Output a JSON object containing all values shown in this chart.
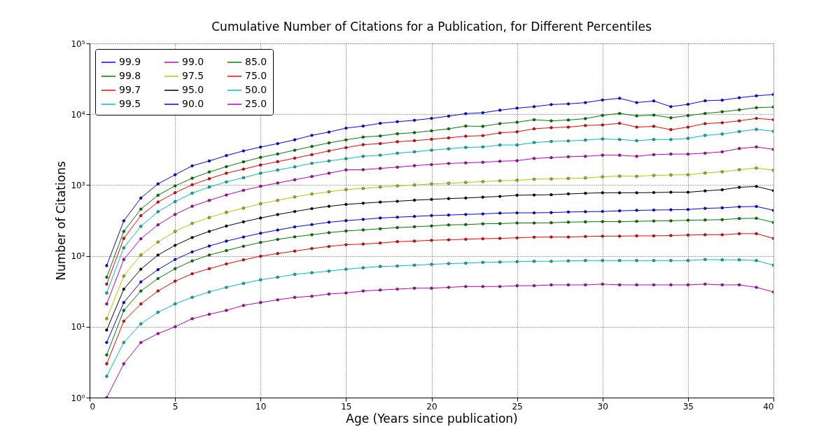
{
  "chart_data": {
    "type": "line",
    "title": "Cumulative Number of Citations for a Publication, for Different Percentiles",
    "xlabel": "Age (Years since publication)",
    "ylabel": "Number of Citations",
    "x": [
      1,
      2,
      3,
      4,
      5,
      6,
      7,
      8,
      9,
      10,
      11,
      12,
      13,
      14,
      15,
      16,
      17,
      18,
      19,
      20,
      21,
      22,
      23,
      24,
      25,
      26,
      27,
      28,
      29,
      30,
      31,
      32,
      33,
      34,
      35,
      36,
      37,
      38,
      39,
      40
    ],
    "xlim": [
      0,
      40
    ],
    "xticks": [
      0,
      5,
      10,
      15,
      20,
      25,
      30,
      35,
      40
    ],
    "ylim": [
      1,
      100000
    ],
    "log": true,
    "yticks": [
      {
        "value": 1,
        "label": "10⁰"
      },
      {
        "value": 10,
        "label": "10¹"
      },
      {
        "value": 100,
        "label": "10²"
      },
      {
        "value": 1000,
        "label": "10³"
      },
      {
        "value": 10000,
        "label": "10⁴"
      },
      {
        "value": 100000,
        "label": "10⁵"
      }
    ],
    "grid": true,
    "legend": "top left",
    "marker": "circle",
    "line_style": "solid",
    "series": [
      {
        "name": "99.9",
        "color": "#0000ff",
        "values": [
          73,
          313,
          656,
          1040,
          1400,
          1870,
          2190,
          2610,
          3040,
          3440,
          3850,
          4360,
          5040,
          5600,
          6370,
          6810,
          7450,
          7850,
          8220,
          8740,
          9400,
          10200,
          10500,
          11400,
          12200,
          12800,
          13700,
          14000,
          14600,
          15900,
          16800,
          14600,
          15400,
          12800,
          13800,
          15500,
          15800,
          17100,
          18200,
          19000
        ]
      },
      {
        "name": "99.8",
        "color": "#008000",
        "values": [
          50,
          222,
          458,
          718,
          975,
          1250,
          1530,
          1820,
          2130,
          2460,
          2750,
          3110,
          3510,
          3940,
          4350,
          4760,
          4940,
          5310,
          5500,
          5850,
          6230,
          6810,
          6750,
          7380,
          7720,
          8370,
          8070,
          8290,
          8670,
          9640,
          10270,
          9480,
          9730,
          8910,
          9570,
          10270,
          10830,
          11540,
          12390,
          12620
        ]
      },
      {
        "name": "99.7",
        "color": "#ff0000",
        "values": [
          40,
          177,
          370,
          576,
          781,
          1010,
          1230,
          1470,
          1680,
          1920,
          2140,
          2400,
          2690,
          3040,
          3380,
          3720,
          3850,
          4090,
          4240,
          4440,
          4640,
          4900,
          4990,
          5450,
          5650,
          6230,
          6460,
          6580,
          6940,
          7060,
          7450,
          6580,
          6750,
          6060,
          6580,
          7380,
          7590,
          8070,
          8740,
          8370
        ]
      },
      {
        "name": "99.5",
        "color": "#00bfbf",
        "values": [
          30,
          130,
          262,
          421,
          585,
          769,
          938,
          1110,
          1270,
          1470,
          1630,
          1810,
          2030,
          2190,
          2360,
          2550,
          2640,
          2820,
          2950,
          3110,
          3250,
          3400,
          3460,
          3680,
          3680,
          3990,
          4130,
          4200,
          4320,
          4480,
          4400,
          4240,
          4400,
          4400,
          4560,
          5030,
          5260,
          5700,
          6120,
          5750
        ]
      },
      {
        "name": "99.0",
        "color": "#bf00bf",
        "values": [
          21,
          89,
          175,
          275,
          385,
          502,
          608,
          725,
          844,
          961,
          1070,
          1190,
          1320,
          1470,
          1640,
          1650,
          1720,
          1790,
          1880,
          1950,
          2020,
          2060,
          2100,
          2170,
          2210,
          2380,
          2440,
          2510,
          2550,
          2640,
          2640,
          2550,
          2690,
          2740,
          2740,
          2820,
          2950,
          3280,
          3460,
          3190
        ]
      },
      {
        "name": "97.5",
        "color": "#bfbf00",
        "values": [
          13,
          52,
          103,
          157,
          222,
          288,
          348,
          412,
          472,
          546,
          608,
          681,
          747,
          806,
          863,
          897,
          939,
          973,
          1000,
          1040,
          1060,
          1090,
          1120,
          1150,
          1170,
          1210,
          1220,
          1240,
          1260,
          1310,
          1340,
          1330,
          1370,
          1390,
          1400,
          1480,
          1540,
          1650,
          1740,
          1620
        ]
      },
      {
        "name": "95.0",
        "color": "#000000",
        "values": [
          9,
          34,
          65,
          103,
          141,
          182,
          222,
          264,
          303,
          343,
          384,
          424,
          465,
          502,
          534,
          555,
          575,
          591,
          612,
          628,
          645,
          657,
          675,
          693,
          719,
          725,
          731,
          751,
          766,
          779,
          779,
          779,
          785,
          793,
          793,
          829,
          859,
          931,
          957,
          836
        ]
      },
      {
        "name": "90.0",
        "color": "#0000ff",
        "values": [
          6,
          22,
          43,
          64,
          89,
          114,
          138,
          162,
          185,
          209,
          232,
          257,
          277,
          299,
          315,
          328,
          343,
          352,
          361,
          371,
          378,
          385,
          392,
          402,
          406,
          406,
          409,
          417,
          421,
          424,
          433,
          440,
          444,
          448,
          452,
          469,
          477,
          494,
          499,
          440
        ]
      },
      {
        "name": "85.0",
        "color": "#008000",
        "values": [
          4,
          17,
          32,
          48,
          66,
          85,
          103,
          119,
          137,
          155,
          171,
          186,
          199,
          213,
          225,
          233,
          242,
          251,
          258,
          265,
          274,
          277,
          284,
          286,
          292,
          292,
          294,
          300,
          303,
          305,
          305,
          308,
          311,
          313,
          319,
          322,
          325,
          337,
          340,
          297
        ]
      },
      {
        "name": "75.0",
        "color": "#ff0000",
        "values": [
          3,
          12,
          21,
          32,
          44,
          56,
          66,
          77,
          88,
          99,
          108,
          117,
          127,
          136,
          144,
          147,
          152,
          159,
          162,
          166,
          169,
          172,
          175,
          177,
          180,
          184,
          185,
          185,
          188,
          190,
          190,
          192,
          192,
          194,
          197,
          199,
          199,
          206,
          206,
          177
        ]
      },
      {
        "name": "50.0",
        "color": "#00bfbf",
        "values": [
          2,
          6,
          11,
          16,
          21,
          26,
          31,
          36,
          41,
          46,
          50,
          55,
          58,
          61,
          65,
          68,
          71,
          72,
          74,
          76,
          78,
          79,
          81,
          82,
          83,
          84,
          84,
          85,
          86,
          86,
          86,
          86,
          86,
          86,
          86,
          89,
          88,
          88,
          86,
          74
        ]
      },
      {
        "name": "25.0",
        "color": "#bf00bf",
        "values": [
          1,
          3,
          6,
          8,
          10,
          13,
          15,
          17,
          20,
          22,
          24,
          26,
          27,
          29,
          30,
          32,
          33,
          34,
          35,
          35,
          36,
          37,
          37,
          37,
          38,
          38,
          39,
          39,
          39,
          40,
          39,
          39,
          39,
          39,
          39,
          40,
          39,
          39,
          36,
          31
        ]
      }
    ]
  }
}
